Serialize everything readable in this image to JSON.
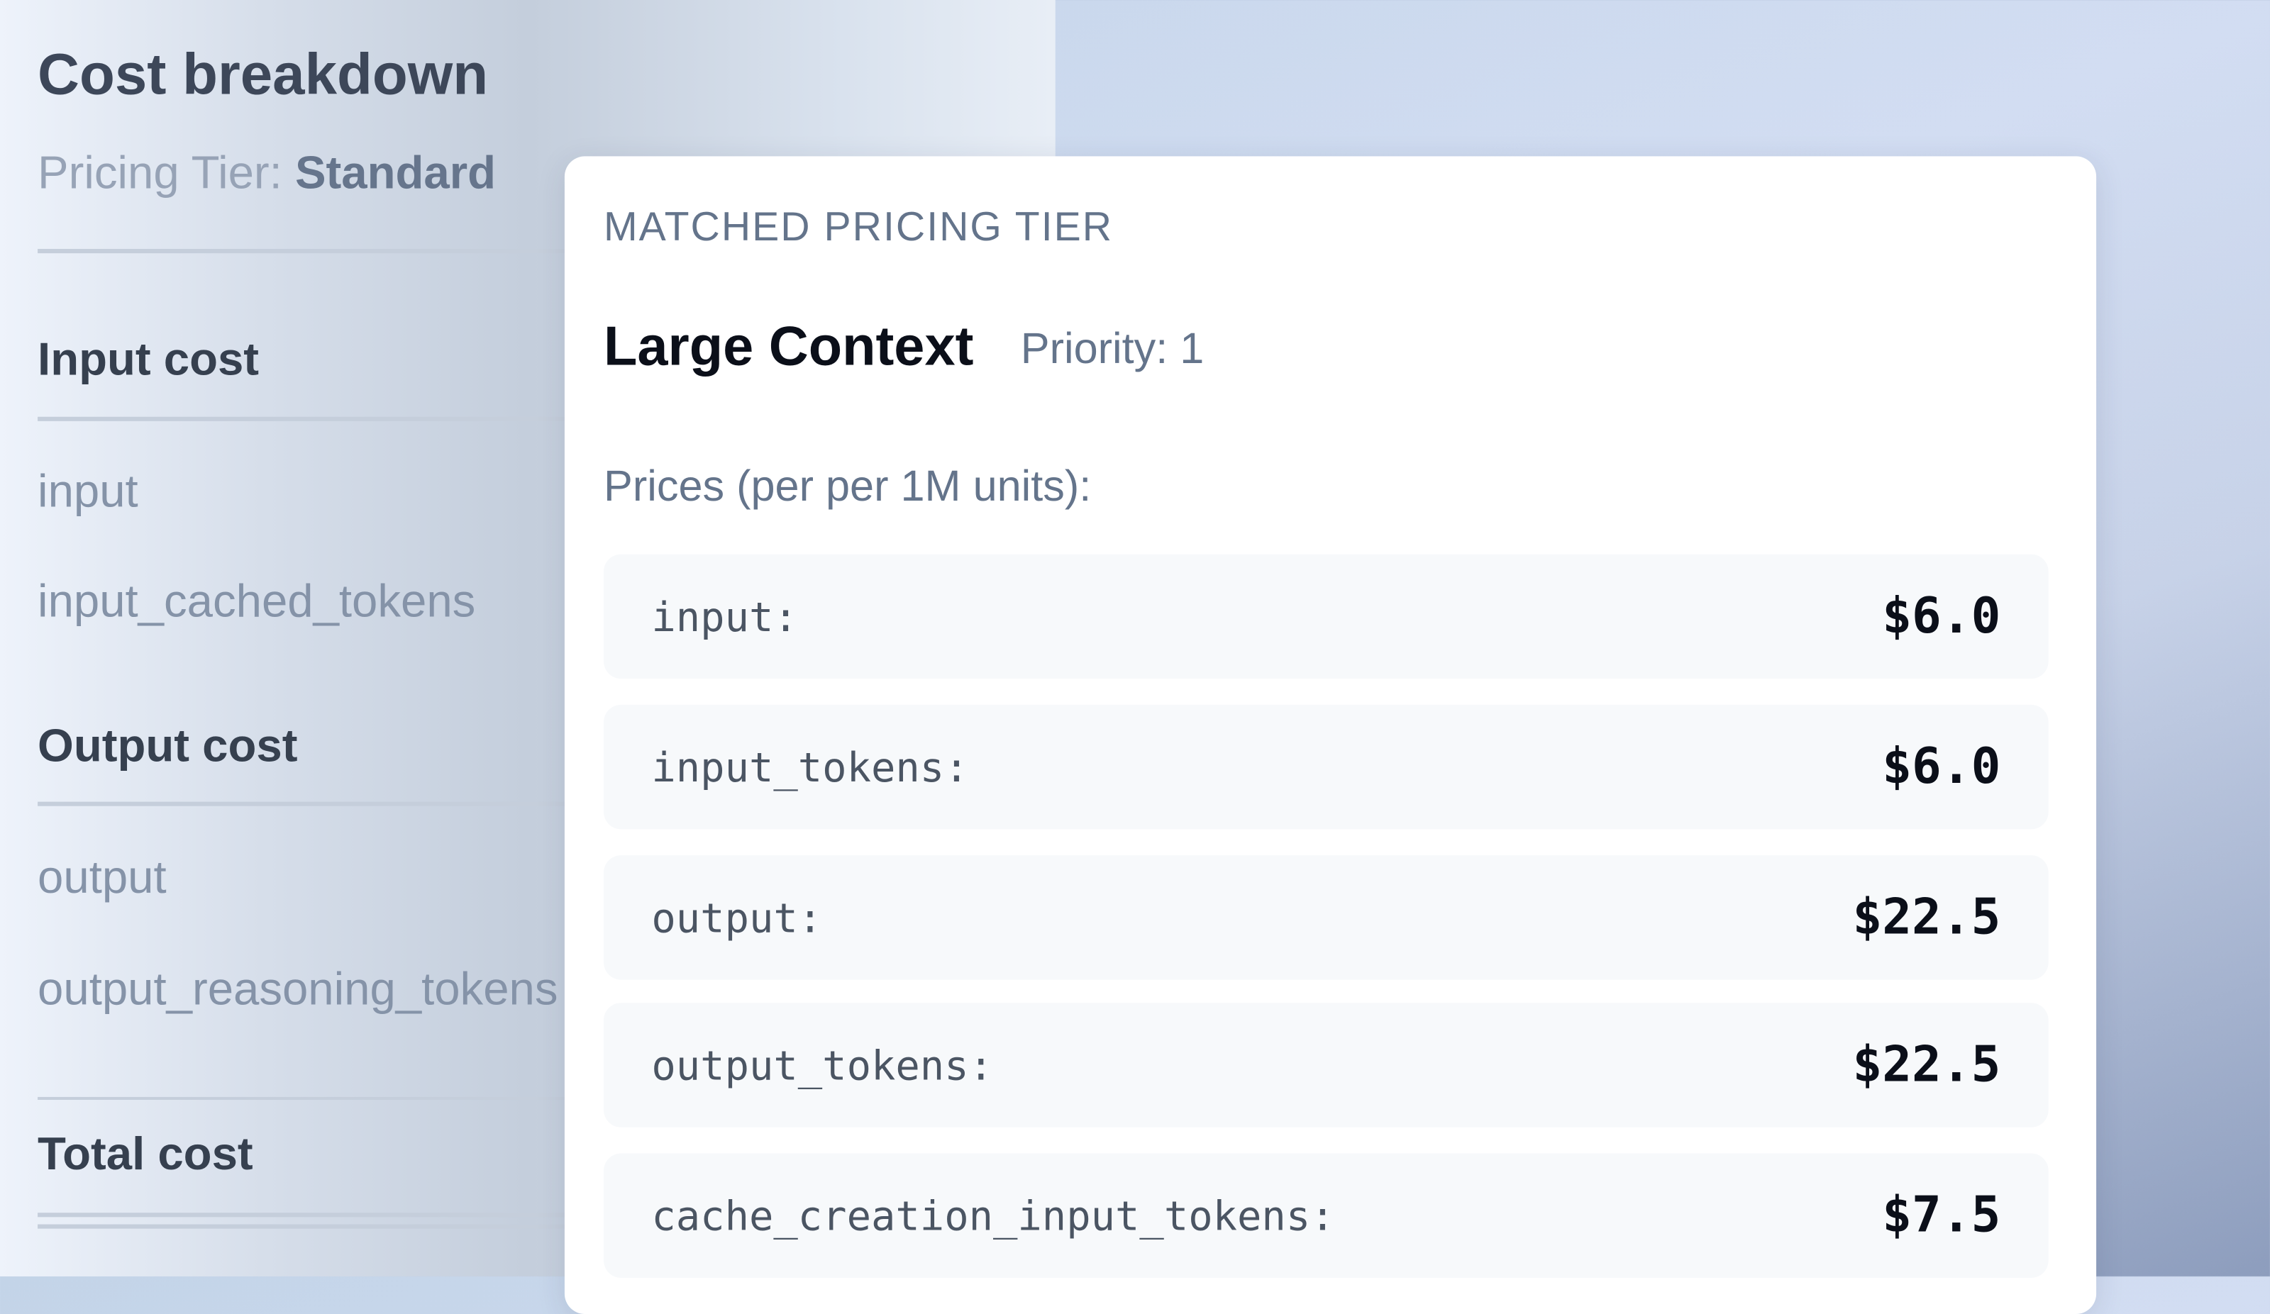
{
  "breakdown": {
    "title": "Cost breakdown",
    "tier_label": "Pricing Tier:",
    "tier_value": "Standard",
    "sections": [
      {
        "heading": "Input cost",
        "items": [
          "input",
          "input_cached_tokens"
        ]
      },
      {
        "heading": "Output cost",
        "items": [
          "output",
          "output_reasoning_tokens"
        ]
      },
      {
        "heading": "Total cost"
      }
    ]
  },
  "popup": {
    "heading": "MATCHED PRICING TIER",
    "tier_name": "Large Context",
    "priority": "Priority: 1",
    "prices_label": "Prices (per per 1M units):",
    "prices": [
      {
        "label": "input:",
        "value": "$6.0"
      },
      {
        "label": "input_tokens:",
        "value": "$6.0"
      },
      {
        "label": "output:",
        "value": "$22.5"
      },
      {
        "label": "output_tokens:",
        "value": "$22.5"
      },
      {
        "label": "cache_creation_input_tokens:",
        "value": "$7.5"
      }
    ]
  }
}
